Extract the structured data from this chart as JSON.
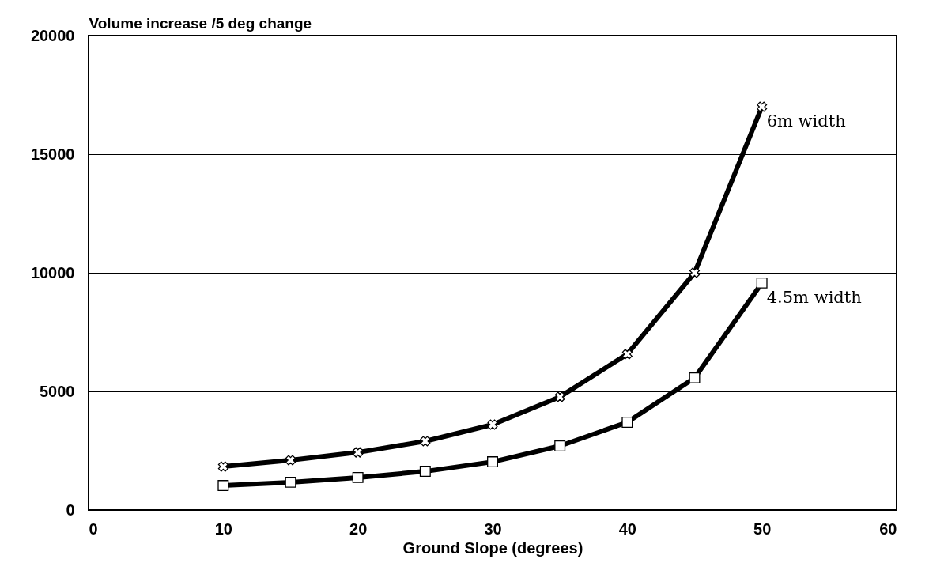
{
  "chart_data": {
    "type": "line",
    "xlabel": "Ground Slope (degrees)",
    "ylabel": "Volume increase /5 deg change",
    "x": [
      10,
      15,
      20,
      25,
      30,
      35,
      40,
      45,
      50
    ],
    "series": [
      {
        "name": "6m width",
        "color": "#000000",
        "marker": "cross",
        "values": [
          1830,
          2100,
          2430,
          2900,
          3600,
          4770,
          6570,
          10000,
          17000
        ]
      },
      {
        "name": "4.5m width",
        "color": "#000000",
        "marker": "square",
        "values": [
          1030,
          1170,
          1370,
          1630,
          2030,
          2700,
          3700,
          5570,
          9570
        ]
      }
    ],
    "xlim": [
      0,
      60
    ],
    "xticks": [
      0,
      10,
      20,
      30,
      40,
      50,
      60
    ],
    "ylim": [
      0,
      20000
    ],
    "yticks": [
      0,
      5000,
      10000,
      15000,
      20000
    ],
    "grid": "y",
    "line_style": "solid"
  }
}
